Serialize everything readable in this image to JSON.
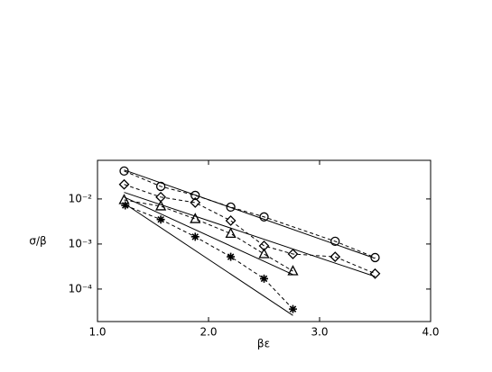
{
  "chart_data": {
    "type": "line",
    "x_label": "βε",
    "y_label": "σ/β",
    "log_y": true,
    "xlim": [
      1.0,
      4.0
    ],
    "ylim": [
      1.9e-05,
      0.072
    ],
    "xticks": [
      {
        "value": 1,
        "label": "1.0"
      },
      {
        "value": 2,
        "label": "2.0"
      },
      {
        "value": 3,
        "label": "3.0"
      },
      {
        "value": 4,
        "label": "4.0"
      }
    ],
    "yticks": [
      {
        "value": 0.01,
        "label": "10⁻²"
      },
      {
        "value": 0.001,
        "label": "10⁻³"
      },
      {
        "value": 0.0001,
        "label": "10⁻⁴"
      }
    ],
    "series": [
      {
        "color": "#000000",
        "marker": "circle",
        "line": "dashed",
        "x": [
          1.24,
          1.57,
          1.88,
          2.2,
          2.5,
          3.14,
          3.5
        ],
        "values": [
          0.0417,
          0.019,
          0.012,
          0.0066,
          0.004,
          0.00115,
          0.0005
        ]
      },
      {
        "color": "#000000",
        "marker": "diamond",
        "line": "dashed",
        "x": [
          1.24,
          1.57,
          1.88,
          2.2,
          2.5,
          2.76,
          3.14,
          3.5
        ],
        "values": [
          0.021,
          0.011,
          0.0083,
          0.0033,
          0.00091,
          0.0006,
          0.00052,
          0.00022
        ]
      },
      {
        "color": "#000000",
        "marker": "triangle",
        "line": "dashed",
        "x": [
          1.24,
          1.57,
          1.88,
          2.2,
          2.5,
          2.76
        ],
        "values": [
          0.0095,
          0.0069,
          0.0036,
          0.0017,
          0.0006,
          0.00025
        ]
      },
      {
        "color": "#000000",
        "marker": "star",
        "line": "dashed",
        "x": [
          1.25,
          1.57,
          1.88,
          2.2,
          2.5,
          2.76
        ],
        "values": [
          0.0072,
          0.0035,
          0.00145,
          0.00052,
          0.00017,
          3.6e-05
        ]
      },
      {
        "color": "#000000",
        "marker": "none",
        "line": "solid",
        "x": [
          1.24,
          3.5
        ],
        "values": [
          0.044,
          0.00048
        ]
      },
      {
        "color": "#000000",
        "marker": "none",
        "line": "solid",
        "x": [
          1.24,
          3.5
        ],
        "values": [
          0.014,
          0.00019
        ]
      },
      {
        "color": "#000000",
        "marker": "none",
        "line": "solid",
        "x": [
          1.24,
          2.76
        ],
        "values": [
          0.011,
          0.00021
        ]
      },
      {
        "color": "#000000",
        "marker": "none",
        "line": "solid",
        "x": [
          1.24,
          2.76
        ],
        "values": [
          0.008,
          2.6e-05
        ]
      }
    ]
  }
}
